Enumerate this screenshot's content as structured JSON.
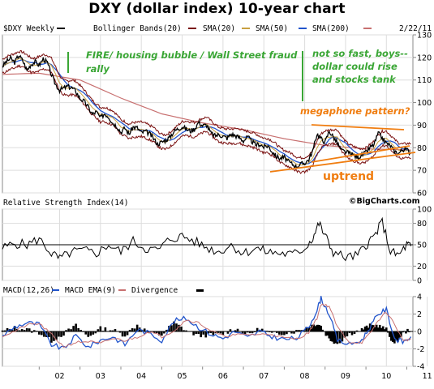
{
  "title": "DXY (dollar index) 10-year chart",
  "colors": {
    "price": "#000000",
    "bollinger": "#7a1010",
    "sma20": "#7a1010",
    "sma50": "#c8a040",
    "sma200": "#c87070",
    "sma_blue": "#2255cc",
    "annotation_green": "#3aa635",
    "annotation_orange": "#f07d10",
    "grid": "#dddddd"
  },
  "chart_data": [
    {
      "type": "line",
      "panel": "price",
      "legend": {
        "symbol": "$DXY Weekly",
        "items": [
          "Bollinger Bands(20)",
          "SMA(20)",
          "SMA(50)",
          "SMA(200)"
        ],
        "date": "2/22/11"
      },
      "yticks": [
        "60",
        "70",
        "80",
        "90",
        "100",
        "110",
        "120",
        "130"
      ],
      "ylim": [
        60,
        130
      ],
      "xlim": [
        2001.1,
        2011.15
      ],
      "annotations": {
        "fire": "FIRE/ housing bubble / Wall Street fraud",
        "rally": "rally",
        "notsofast1": "not so fast, boys--",
        "notsofast2": "dollar could rise",
        "notsofast3": "and stocks tank",
        "megaphone": "megaphone pattern?",
        "uptrend": "uptrend",
        "watermark": "©BigCharts.com"
      },
      "series": [
        {
          "key": "price",
          "x": [
            2001.1,
            2001.2,
            2001.3,
            2001.4,
            2001.5,
            2001.6,
            2001.7,
            2001.8,
            2001.9,
            2002.0,
            2002.1,
            2002.2,
            2002.3,
            2002.4,
            2002.5,
            2002.6,
            2002.7,
            2002.8,
            2002.9,
            2003.0,
            2003.1,
            2003.2,
            2003.3,
            2003.4,
            2003.5,
            2003.6,
            2003.7,
            2003.8,
            2003.9,
            2004.0,
            2004.1,
            2004.2,
            2004.3,
            2004.4,
            2004.5,
            2004.6,
            2004.7,
            2004.8,
            2004.9,
            2005.0,
            2005.1,
            2005.2,
            2005.3,
            2005.4,
            2005.5,
            2005.6,
            2005.7,
            2005.8,
            2005.9,
            2006.0,
            2006.1,
            2006.2,
            2006.3,
            2006.4,
            2006.5,
            2006.6,
            2006.7,
            2006.8,
            2006.9,
            2007.0,
            2007.1,
            2007.2,
            2007.3,
            2007.4,
            2007.5,
            2007.6,
            2007.7,
            2007.8,
            2007.9,
            2008.0,
            2008.1,
            2008.2,
            2008.3,
            2008.4,
            2008.5,
            2008.6,
            2008.7,
            2008.8,
            2008.9,
            2009.0,
            2009.1,
            2009.2,
            2009.3,
            2009.4,
            2009.5,
            2009.6,
            2009.7,
            2009.8,
            2009.9,
            2010.0,
            2010.1,
            2010.2,
            2010.3,
            2010.4,
            2010.5,
            2010.6,
            2010.7,
            2010.8,
            2010.9,
            2011.0,
            2011.1
          ],
          "y": [
            116.0,
            118.2,
            119.6,
            117.8,
            121.0,
            118.5,
            114.3,
            116.9,
            118.1,
            116.5,
            119.4,
            117.6,
            112.3,
            108.1,
            105.5,
            106.4,
            107.2,
            106.5,
            105.0,
            101.8,
            100.5,
            98.1,
            94.8,
            95.9,
            93.2,
            95.1,
            93.8,
            91.0,
            89.6,
            86.9,
            88.7,
            86.0,
            89.2,
            88.8,
            86.6,
            87.3,
            86.2,
            84.1,
            81.6,
            82.5,
            83.4,
            84.7,
            87.3,
            88.4,
            89.3,
            88.3,
            87.4,
            88.2,
            91.3,
            89.8,
            90.1,
            86.5,
            85.3,
            85.8,
            85.1,
            84.3,
            86.0,
            85.4,
            84.5,
            83.1,
            84.7,
            83.0,
            81.2,
            81.6,
            80.3,
            80.9,
            78.4,
            76.2,
            75.3,
            75.7,
            73.8,
            72.7,
            71.7,
            72.6,
            73.2,
            74.8,
            78.6,
            86.2,
            84.0,
            82.5,
            87.4,
            84.8,
            82.1,
            78.8,
            78.1,
            77.5,
            76.6,
            75.7,
            76.8,
            77.9,
            80.0,
            81.5,
            86.4,
            84.2,
            82.0,
            80.9,
            78.4,
            77.5,
            79.3,
            79.2,
            77.4
          ]
        },
        {
          "key": "sma200",
          "x": [
            2001.1,
            2002.0,
            2003.0,
            2004.0,
            2005.0,
            2006.0,
            2007.0,
            2008.0,
            2009.0,
            2010.0,
            2011.1
          ],
          "y": [
            112.5,
            113.0,
            110.0,
            102.0,
            95.0,
            91.0,
            88.0,
            84.0,
            81.0,
            79.5,
            79.0
          ]
        }
      ]
    },
    {
      "type": "line",
      "panel": "rsi",
      "legend": "Relative Strength Index(14)",
      "yticks": [
        "0",
        "20",
        "50",
        "80",
        "100"
      ],
      "ylim": [
        0,
        100
      ],
      "series": [
        {
          "key": "rsi",
          "x": [
            2001.1,
            2001.4,
            2001.7,
            2002.0,
            2002.3,
            2002.5,
            2002.8,
            2003.1,
            2003.4,
            2003.7,
            2004.0,
            2004.3,
            2004.6,
            2004.9,
            2005.2,
            2005.5,
            2005.8,
            2006.1,
            2006.4,
            2006.7,
            2007.0,
            2007.3,
            2007.6,
            2007.9,
            2008.2,
            2008.5,
            2008.7,
            2008.85,
            2009.0,
            2009.2,
            2009.5,
            2009.8,
            2010.0,
            2010.2,
            2010.4,
            2010.6,
            2010.8,
            2011.0,
            2011.1
          ],
          "y": [
            45,
            52,
            50,
            58,
            38,
            30,
            40,
            42,
            38,
            50,
            40,
            55,
            45,
            42,
            58,
            62,
            55,
            46,
            40,
            50,
            38,
            45,
            40,
            38,
            36,
            45,
            60,
            80,
            62,
            40,
            32,
            35,
            50,
            62,
            82,
            40,
            35,
            50,
            48
          ]
        }
      ]
    },
    {
      "type": "line",
      "panel": "macd",
      "legend": [
        "MACD(12,26)",
        "MACD EMA(9)",
        "Divergence"
      ],
      "yticks": [
        "-4",
        "-2",
        "0",
        "2",
        "4"
      ],
      "ylim": [
        -4,
        4
      ],
      "series": [
        {
          "key": "macd",
          "x": [
            2001.1,
            2001.4,
            2001.7,
            2002.0,
            2002.3,
            2002.6,
            2002.9,
            2003.2,
            2003.5,
            2003.8,
            2004.1,
            2004.4,
            2004.7,
            2005.0,
            2005.3,
            2005.6,
            2005.9,
            2006.2,
            2006.5,
            2006.8,
            2007.1,
            2007.4,
            2007.7,
            2008.0,
            2008.3,
            2008.6,
            2008.8,
            2008.9,
            2009.1,
            2009.3,
            2009.6,
            2009.9,
            2010.1,
            2010.3,
            2010.5,
            2010.7,
            2010.9,
            2011.1
          ],
          "y": [
            -0.5,
            0.5,
            1.0,
            0.8,
            -1.5,
            -2.0,
            -0.5,
            -1.8,
            -1.0,
            -0.6,
            -1.5,
            0.2,
            -0.2,
            -1.0,
            1.2,
            1.5,
            0.5,
            -0.3,
            -0.8,
            0.0,
            -0.7,
            0.0,
            -0.6,
            -0.9,
            -0.8,
            0.5,
            2.5,
            3.8,
            2.0,
            -1.0,
            -1.5,
            -1.0,
            0.5,
            2.0,
            2.5,
            -0.8,
            -1.2,
            -0.6
          ]
        }
      ]
    }
  ],
  "xticks": [
    "02",
    "03",
    "04",
    "05",
    "06",
    "07",
    "08",
    "09",
    "10",
    "11"
  ]
}
